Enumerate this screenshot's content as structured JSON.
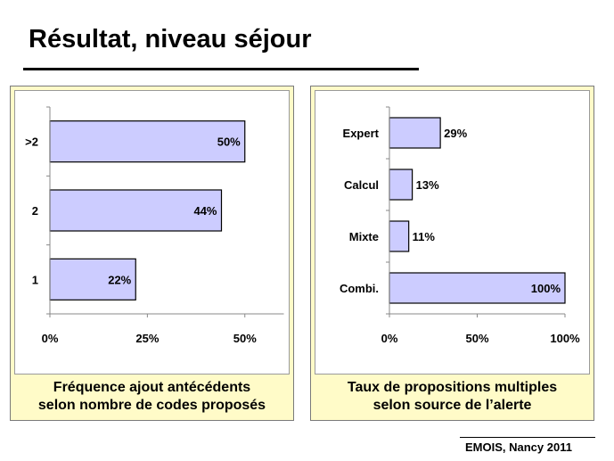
{
  "page": {
    "title": "Résultat, niveau séjour",
    "footer": "EMOIS, Nancy 2011"
  },
  "colors": {
    "bar_fill": "#ccccff",
    "panel_bg": "#fffbc8"
  },
  "chart_data": [
    {
      "type": "bar",
      "orientation": "horizontal",
      "categories": [
        ">2",
        "2",
        "1"
      ],
      "values": [
        50,
        44,
        22
      ],
      "data_labels": [
        "50%",
        "44%",
        "22%"
      ],
      "xticks": [
        "0%",
        "25%",
        "50%"
      ],
      "xlim": [
        0,
        60
      ],
      "caption": [
        "Fréquence ajout antécédents",
        "selon nombre de codes proposés"
      ]
    },
    {
      "type": "bar",
      "orientation": "horizontal",
      "categories": [
        "Expert",
        "Calcul",
        "Mixte",
        "Combi."
      ],
      "values": [
        29,
        13,
        11,
        100
      ],
      "data_labels": [
        "29%",
        "13%",
        "11%",
        "100%"
      ],
      "xticks": [
        "0%",
        "50%",
        "100%"
      ],
      "xlim": [
        0,
        100
      ],
      "caption": [
        "Taux de propositions multiples",
        "selon source de l’alerte"
      ]
    }
  ]
}
